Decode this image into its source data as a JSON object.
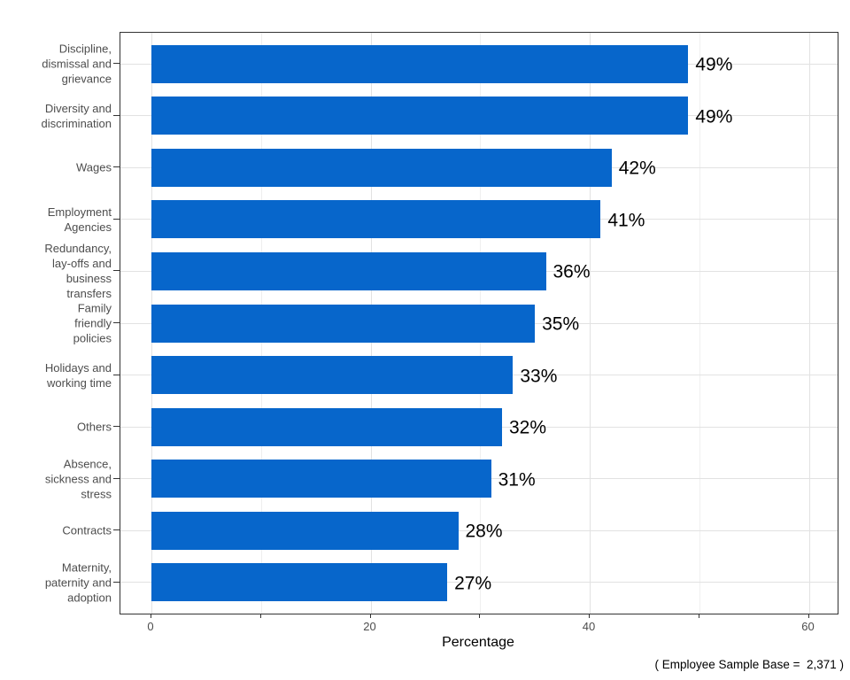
{
  "chart_data": {
    "type": "bar",
    "orientation": "horizontal",
    "title": "",
    "xlabel": "Percentage",
    "ylabel": "",
    "caption": "( Employee Sample Base =  2,371 )",
    "xlim": [
      0,
      65
    ],
    "x_major_ticks": [
      0,
      20,
      40,
      60
    ],
    "x_minor_ticks": [
      10,
      30,
      50
    ],
    "x_tick_interval": 10,
    "grid": "vertical-and-category",
    "legend_position": "none",
    "categories": [
      "Discipline,\ndismissal and\ngrievance",
      "Diversity and\ndiscrimination",
      "Wages",
      "Employment\nAgencies",
      "Redundancy,\nlay-offs and\nbusiness\ntransfers",
      "Family\nfriendly\npolicies",
      "Holidays and\nworking time",
      "Others",
      "Absence,\nsickness and\nstress",
      "Contracts",
      "Maternity,\npaternity and\nadoption"
    ],
    "values": [
      49,
      49,
      42,
      41,
      36,
      35,
      33,
      32,
      31,
      28,
      27
    ],
    "value_labels": [
      "49%",
      "49%",
      "42%",
      "41%",
      "36%",
      "35%",
      "33%",
      "32%",
      "31%",
      "28%",
      "27%"
    ]
  },
  "colors": {
    "bar": "#0766CB",
    "grid_major": "#E2E2E2",
    "grid_minor": "#EFEFEF",
    "panel_border": "#333333",
    "axis_text": "#4D4D4D",
    "tick": "#333333",
    "value_label": "#000000",
    "background": "#FFFFFF"
  }
}
